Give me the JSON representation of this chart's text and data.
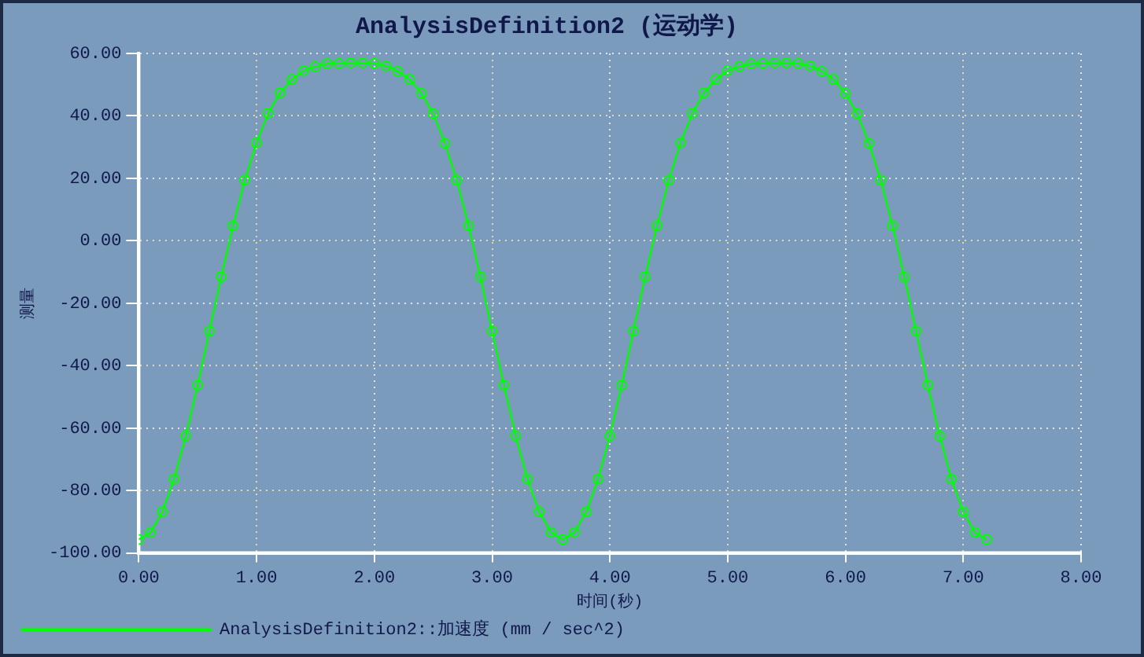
{
  "chart_data": {
    "type": "line",
    "title": "AnalysisDefinition2 (运动学)",
    "xlabel": "时间(秒)",
    "ylabel": "测量",
    "x": [
      0,
      0.1,
      0.2,
      0.3,
      0.4,
      0.5,
      0.6,
      0.7,
      0.8,
      0.9,
      1.0,
      1.1,
      1.2,
      1.3,
      1.4,
      1.5,
      1.6,
      1.7,
      1.8,
      1.9,
      2.0,
      2.1,
      2.2,
      2.3,
      2.4,
      2.5,
      2.6,
      2.7,
      2.8,
      2.9,
      3.0,
      3.1,
      3.2,
      3.3,
      3.4,
      3.5,
      3.6,
      3.7,
      3.8,
      3.9,
      4.0,
      4.1,
      4.2,
      4.3,
      4.4,
      4.5,
      4.6,
      4.7,
      4.8,
      4.9,
      5.0,
      5.1,
      5.2,
      5.3,
      5.4,
      5.5,
      5.6,
      5.7,
      5.8,
      5.9,
      6.0,
      6.1,
      6.2,
      6.3,
      6.4,
      6.5,
      6.6,
      6.7,
      6.8,
      6.9,
      7.0,
      7.1,
      7.2
    ],
    "series": [
      {
        "name": "AnalysisDefinition2::加速度 (mm / sec^2)",
        "color": "#00ff00",
        "values": [
          -95.7,
          -93.4,
          -86.8,
          -76.3,
          -62.5,
          -46.2,
          -28.9,
          -11.5,
          4.8,
          19.4,
          31.4,
          40.9,
          47.4,
          51.7,
          54.5,
          55.8,
          56.7,
          56.8,
          57.0,
          57.0,
          56.8,
          56.0,
          54.3,
          51.7,
          47.2,
          40.7,
          31.2,
          19.4,
          4.8,
          -11.5,
          -28.9,
          -46.2,
          -62.5,
          -76.3,
          -86.8,
          -93.4,
          -95.7,
          -93.4,
          -86.8,
          -76.3,
          -62.5,
          -46.2,
          -28.9,
          -11.5,
          4.8,
          19.4,
          31.4,
          40.9,
          47.4,
          51.7,
          54.5,
          55.8,
          56.7,
          56.8,
          57.0,
          57.0,
          56.8,
          56.0,
          54.3,
          51.7,
          47.2,
          40.7,
          31.2,
          19.4,
          4.8,
          -11.5,
          -28.9,
          -46.2,
          -62.5,
          -76.3,
          -86.8,
          -93.4,
          -95.7
        ]
      }
    ],
    "xlim": [
      0,
      8
    ],
    "xticks": [
      {
        "value": 0,
        "label": "0.00"
      },
      {
        "value": 1,
        "label": "1.00"
      },
      {
        "value": 2,
        "label": "2.00"
      },
      {
        "value": 3,
        "label": "3.00"
      },
      {
        "value": 4,
        "label": "4.00"
      },
      {
        "value": 5,
        "label": "5.00"
      },
      {
        "value": 6,
        "label": "6.00"
      },
      {
        "value": 7,
        "label": "7.00"
      },
      {
        "value": 8,
        "label": "8.00"
      }
    ],
    "ylim": [
      -100,
      60
    ],
    "yticks": [
      {
        "value": -100,
        "label": "-100.00"
      },
      {
        "value": -80,
        "label": "-80.00"
      },
      {
        "value": -60,
        "label": "-60.00"
      },
      {
        "value": -40,
        "label": "-40.00"
      },
      {
        "value": -20,
        "label": "-20.00"
      },
      {
        "value": 0,
        "label": "0.00"
      },
      {
        "value": 20,
        "label": "20.00"
      },
      {
        "value": 40,
        "label": "40.00"
      },
      {
        "value": 60,
        "label": "60.00"
      }
    ],
    "grid": true,
    "legend": "bottom left",
    "marker": "circle",
    "line_style": "solid"
  }
}
